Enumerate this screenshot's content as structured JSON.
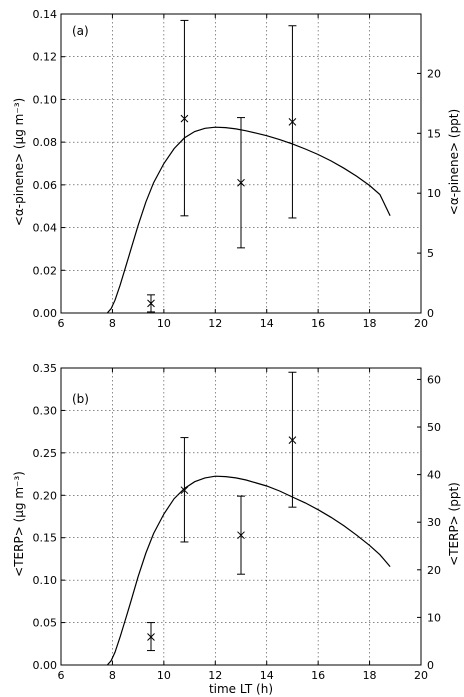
{
  "chart_data": [
    {
      "type": "scatter",
      "panel_label": "(a)",
      "xlabel": "",
      "ylabel": "<α-pinene> (μg m⁻³)",
      "ylabel_right": "<α-pinene> (ppt)",
      "xlim": [
        6,
        20
      ],
      "ylim": [
        0,
        0.14
      ],
      "ylim_right": [
        0,
        24.96
      ],
      "xticks": [
        6,
        8,
        10,
        12,
        14,
        16,
        18,
        20
      ],
      "yticks": [
        "0.00",
        "0.02",
        "0.04",
        "0.06",
        "0.08",
        "0.10",
        "0.12",
        "0.14"
      ],
      "yticks_right": [
        0,
        5,
        10,
        15,
        20
      ],
      "grid": true,
      "points": [
        {
          "x": 9.5,
          "y": 0.0045,
          "err_low": 0.0005,
          "err_high": 0.0085
        },
        {
          "x": 10.8,
          "y": 0.091,
          "err_low": 0.0455,
          "err_high": 0.137
        },
        {
          "x": 13.0,
          "y": 0.061,
          "err_low": 0.0305,
          "err_high": 0.0915
        },
        {
          "x": 15.0,
          "y": 0.0895,
          "err_low": 0.0445,
          "err_high": 0.1345
        }
      ],
      "model_curve": {
        "x": [
          7.8,
          7.95,
          8.1,
          8.3,
          8.5,
          8.7,
          9.0,
          9.3,
          9.6,
          10.0,
          10.4,
          10.8,
          11.2,
          11.6,
          12.0,
          12.4,
          12.8,
          13.2,
          13.6,
          14.0,
          14.5,
          15.0,
          15.5,
          16.0,
          16.5,
          17.0,
          17.5,
          18.0,
          18.4,
          18.8
        ],
        "y": [
          0.0,
          0.002,
          0.006,
          0.013,
          0.021,
          0.029,
          0.041,
          0.052,
          0.061,
          0.07,
          0.077,
          0.082,
          0.085,
          0.0865,
          0.087,
          0.0868,
          0.0862,
          0.0853,
          0.0842,
          0.083,
          0.0812,
          0.0792,
          0.0768,
          0.0742,
          0.0712,
          0.0678,
          0.064,
          0.0597,
          0.0555,
          0.0455
        ]
      }
    },
    {
      "type": "scatter",
      "panel_label": "(b)",
      "xlabel": "time LT (h)",
      "ylabel": "<TERP> (μg m⁻³)",
      "ylabel_right": "<TERP> (ppt)",
      "xlim": [
        6,
        20
      ],
      "ylim": [
        0,
        0.35
      ],
      "ylim_right": [
        0,
        62.4
      ],
      "xticks": [
        6,
        8,
        10,
        12,
        14,
        16,
        18,
        20
      ],
      "yticks": [
        "0.00",
        "0.05",
        "0.10",
        "0.15",
        "0.20",
        "0.25",
        "0.30",
        "0.35"
      ],
      "yticks_right": [
        0,
        10,
        20,
        30,
        40,
        50,
        60
      ],
      "grid": true,
      "points": [
        {
          "x": 9.5,
          "y": 0.033,
          "err_low": 0.017,
          "err_high": 0.05
        },
        {
          "x": 10.8,
          "y": 0.206,
          "err_low": 0.145,
          "err_high": 0.268
        },
        {
          "x": 13.0,
          "y": 0.153,
          "err_low": 0.107,
          "err_high": 0.199
        },
        {
          "x": 15.0,
          "y": 0.265,
          "err_low": 0.186,
          "err_high": 0.345
        }
      ],
      "model_curve": {
        "x": [
          7.8,
          7.95,
          8.1,
          8.3,
          8.5,
          8.7,
          9.0,
          9.3,
          9.6,
          10.0,
          10.4,
          10.8,
          11.2,
          11.6,
          12.0,
          12.4,
          12.8,
          13.2,
          13.6,
          14.0,
          14.5,
          15.0,
          15.5,
          16.0,
          16.5,
          17.0,
          17.5,
          18.0,
          18.4,
          18.8
        ],
        "y": [
          0.0,
          0.005,
          0.015,
          0.033,
          0.053,
          0.073,
          0.104,
          0.132,
          0.155,
          0.178,
          0.196,
          0.208,
          0.216,
          0.2205,
          0.2225,
          0.222,
          0.2205,
          0.218,
          0.2145,
          0.211,
          0.205,
          0.198,
          0.191,
          0.183,
          0.174,
          0.164,
          0.153,
          0.141,
          0.13,
          0.116
        ]
      }
    }
  ]
}
